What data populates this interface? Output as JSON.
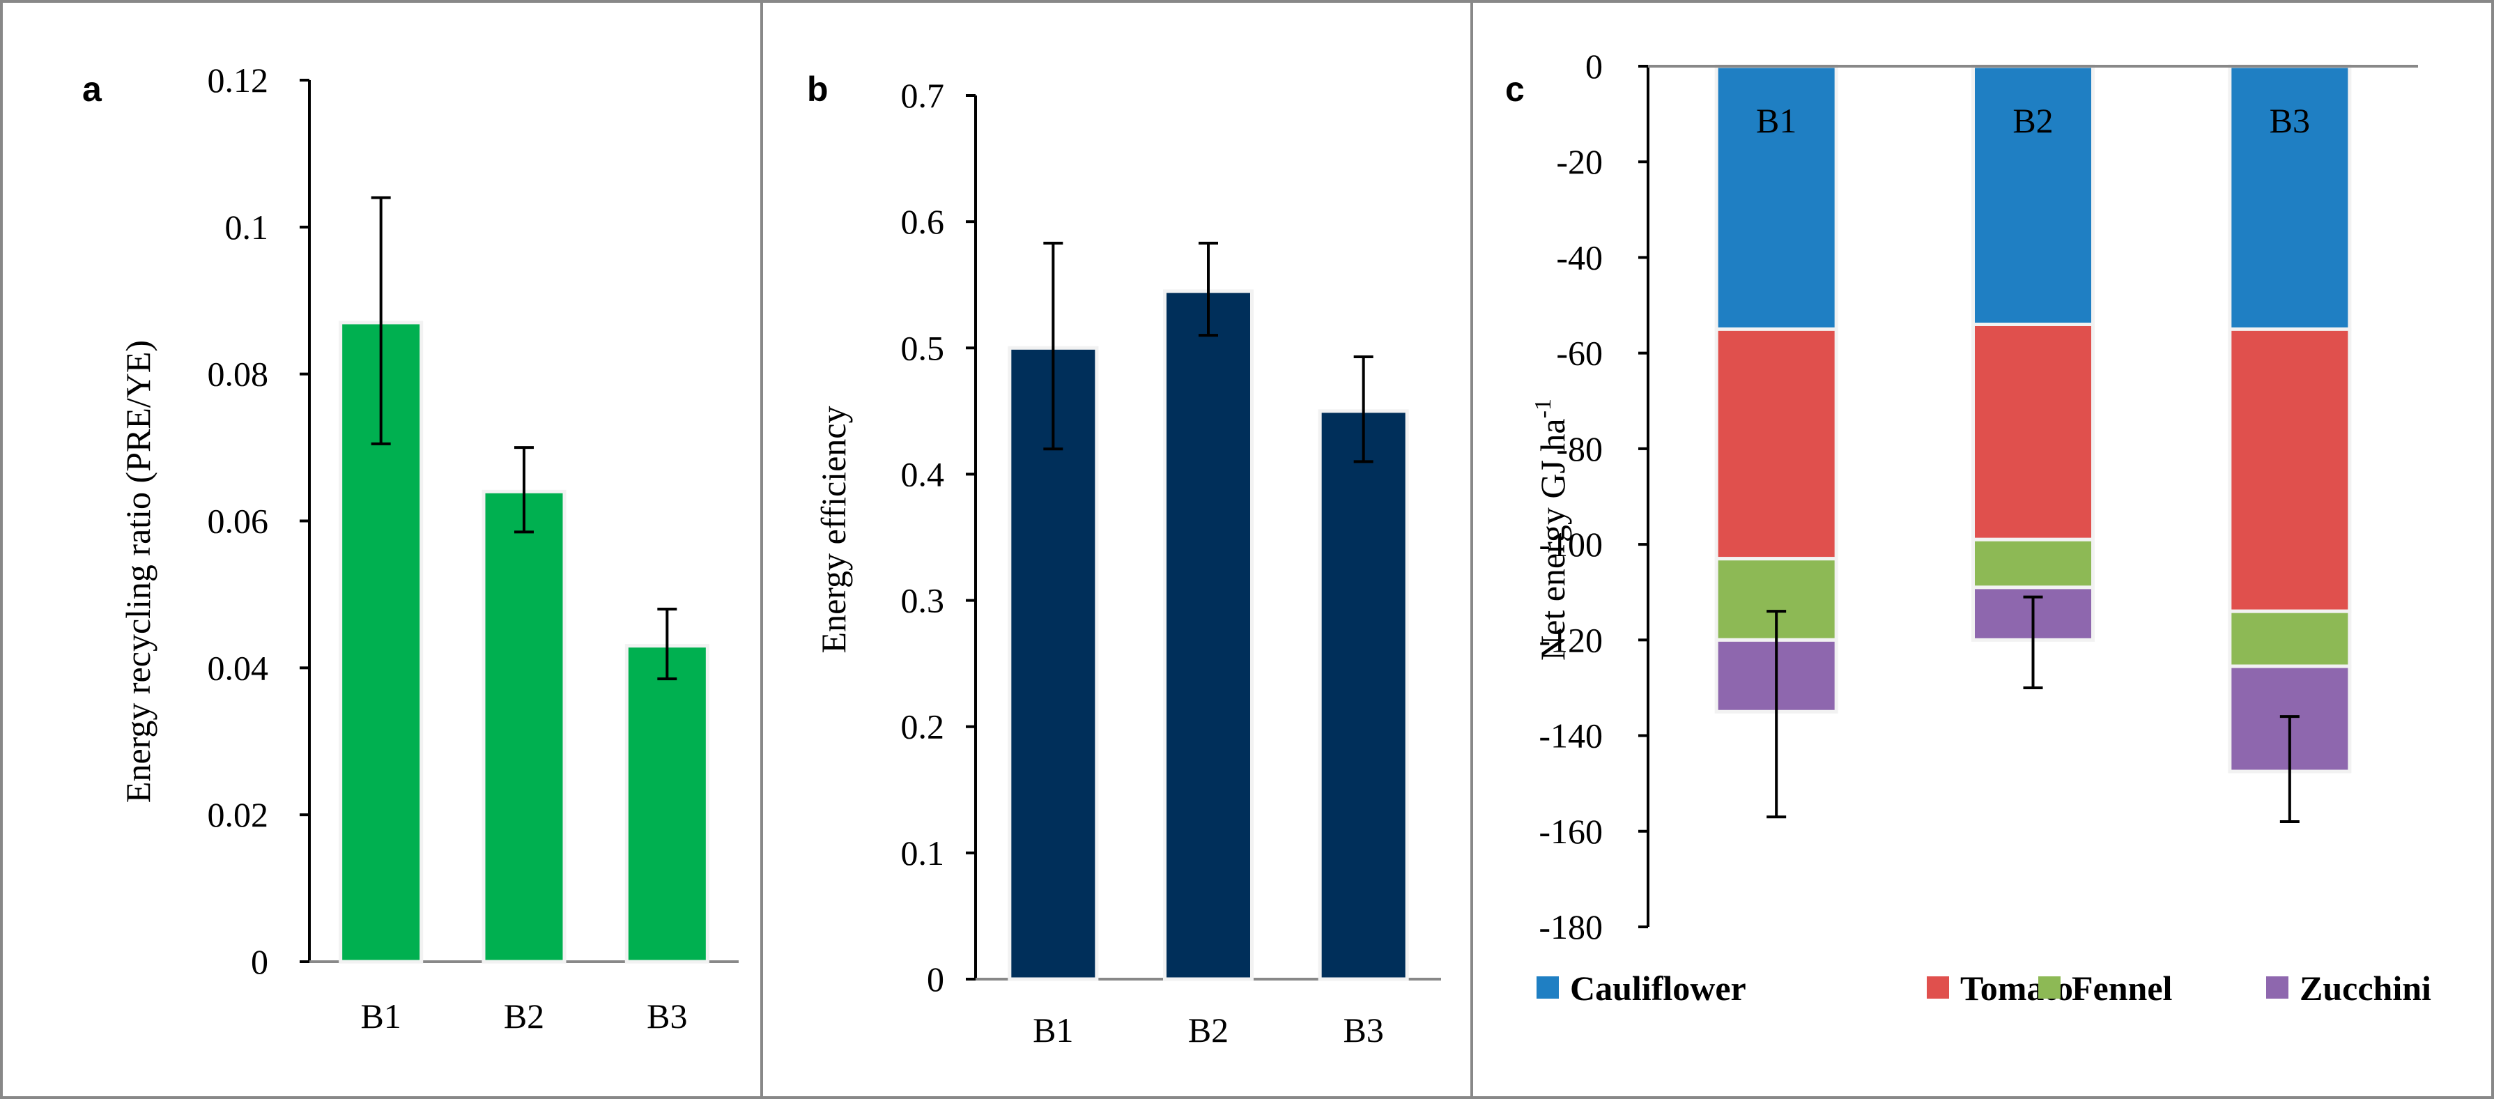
{
  "figure": {
    "panels": [
      {
        "letter": "a",
        "ylabel": "Energy  recycling ratio (PRE/YE)"
      },
      {
        "letter": "b",
        "ylabel": "Energy  efficiency"
      },
      {
        "letter": "c",
        "ylabel": "Net  energy  GJ ha",
        "ylabel_sup": "-1"
      }
    ]
  },
  "chart_data": [
    {
      "type": "bar",
      "panel": "a",
      "categories": [
        "B1",
        "B2",
        "B3"
      ],
      "values": [
        0.087,
        0.064,
        0.043
      ],
      "error_low": [
        0.0705,
        0.0585,
        0.0385
      ],
      "error_high": [
        0.104,
        0.07,
        0.048
      ],
      "ylim": [
        0,
        0.12
      ],
      "yticks": [
        0,
        0.02,
        0.04,
        0.06,
        0.08,
        0.1,
        0.12
      ],
      "ytick_labels": [
        "0",
        "0.02",
        "0.04",
        "0.06",
        "0.08",
        "0.1",
        "0.12"
      ],
      "ylabel": "Energy  recycling ratio (PRE/YE)",
      "color": "#00B050"
    },
    {
      "type": "bar",
      "panel": "b",
      "categories": [
        "B1",
        "B2",
        "B3"
      ],
      "values": [
        0.5,
        0.545,
        0.45
      ],
      "error_low": [
        0.42,
        0.51,
        0.41
      ],
      "error_high": [
        0.583,
        0.583,
        0.493
      ],
      "ylim": [
        0,
        0.7
      ],
      "yticks": [
        0,
        0.1,
        0.2,
        0.3,
        0.4,
        0.5,
        0.6,
        0.7
      ],
      "ytick_labels": [
        "0",
        "0.1",
        "0.2",
        "0.3",
        "0.4",
        "0.5",
        "0.6",
        "0.7"
      ],
      "ylabel": "Energy  efficiency",
      "color": "#002F5A"
    },
    {
      "type": "stacked-bar",
      "panel": "c",
      "categories": [
        "B1",
        "B2",
        "B3"
      ],
      "series": [
        {
          "name": "Cauliflower",
          "values": [
            -55,
            -54,
            -55
          ],
          "color": "#1F7FC3"
        },
        {
          "name": "Tomato",
          "values": [
            -48,
            -45,
            -59
          ],
          "color": "#E0504D"
        },
        {
          "name": "Fennel",
          "values": [
            -17,
            -10,
            -11.5
          ],
          "color": "#8DB955"
        },
        {
          "name": "Zucchini",
          "values": [
            -15,
            -11,
            -22
          ],
          "color": "#8E67AE"
        }
      ],
      "error_low": [
        -157,
        -130,
        -158
      ],
      "error_high": [
        -114,
        -111,
        -136
      ],
      "ylim": [
        -180,
        0
      ],
      "yticks": [
        0,
        -20,
        -40,
        -60,
        -80,
        -100,
        -120,
        -140,
        -160,
        -180
      ],
      "ytick_labels": [
        "0",
        "-20",
        "-40",
        "-60",
        "-80",
        "-100",
        "-120",
        "-140",
        "-160",
        "-180"
      ],
      "ylabel": "Net  energy  GJ ha-1",
      "legend": [
        "Cauliflower",
        "Tomato",
        "Fennel",
        "Zucchini"
      ],
      "legend_position": "bottom"
    }
  ]
}
